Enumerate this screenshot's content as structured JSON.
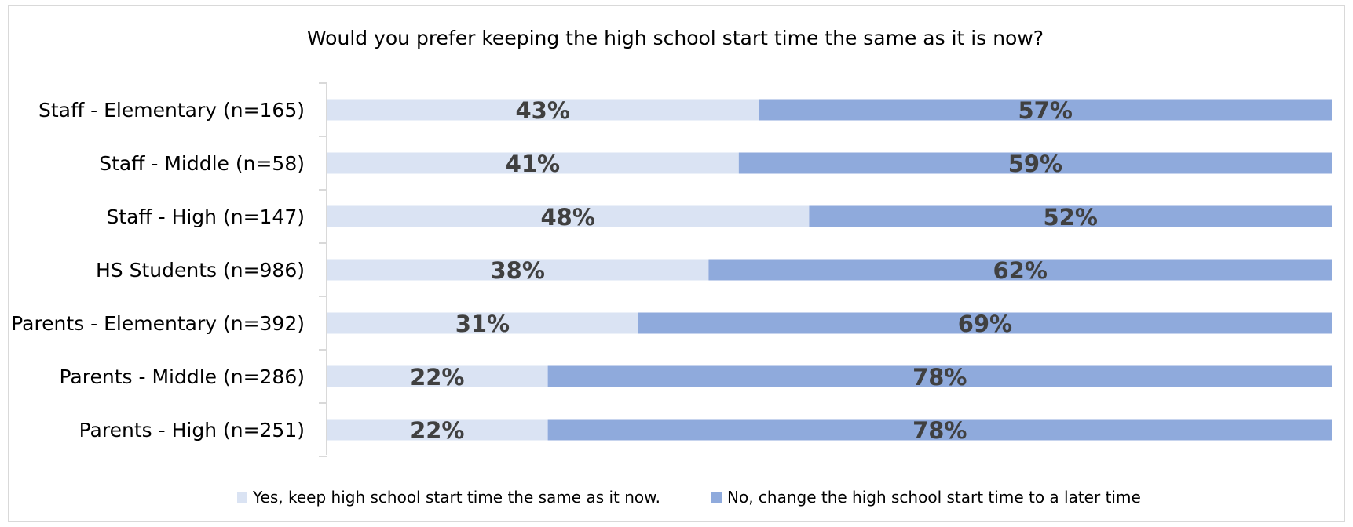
{
  "chart_data": {
    "type": "bar",
    "orientation": "horizontal",
    "stacked": true,
    "percent_stacked": true,
    "title": "Would you prefer keeping the high school start time the same as it is now?",
    "categories": [
      "Staff - Elementary (n=165)",
      "Staff - Middle (n=58)",
      "Staff - High (n=147)",
      "HS Students (n=986)",
      "Parents - Elementary (n=392)",
      "Parents - Middle (n=286)",
      "Parents - High (n=251)"
    ],
    "series": [
      {
        "name": "Yes, keep high school start time the same as it now.",
        "color": "#dae3f3",
        "values": [
          43,
          41,
          48,
          38,
          31,
          22,
          22
        ],
        "labels": [
          "43%",
          "41%",
          "48%",
          "38%",
          "31%",
          "22%",
          "22%"
        ]
      },
      {
        "name": "No, change the high school start time to a later time",
        "color": "#8faadc",
        "values": [
          57,
          59,
          52,
          62,
          69,
          78,
          78
        ],
        "labels": [
          "57%",
          "59%",
          "52%",
          "62%",
          "69%",
          "78%",
          "78%"
        ]
      }
    ],
    "xlim": [
      0,
      100
    ],
    "xlabel": "",
    "ylabel": "",
    "grid": false,
    "legend": "bottom",
    "value_label_color": "#404040",
    "axis_color": "#d9d9d9"
  }
}
